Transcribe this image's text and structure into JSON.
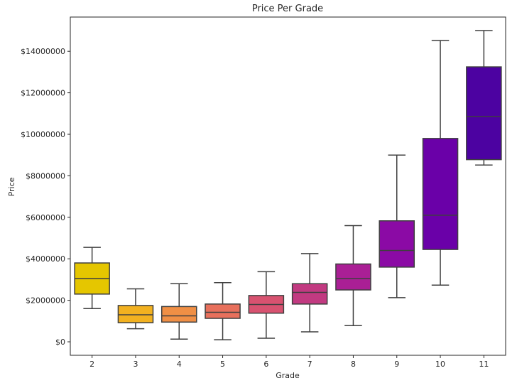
{
  "chart_data": {
    "type": "box",
    "title": "Price Per Grade",
    "xlabel": "Grade",
    "ylabel": "Price",
    "ylim": [
      -650000,
      15650000
    ],
    "yticks": [
      0,
      2000000,
      4000000,
      6000000,
      8000000,
      10000000,
      12000000,
      14000000
    ],
    "ytick_labels": [
      "$0",
      "$2000000",
      "$4000000",
      "$6000000",
      "$8000000",
      "$10000000",
      "$12000000",
      "$14000000"
    ],
    "grid": false,
    "categories": [
      "2",
      "3",
      "4",
      "5",
      "6",
      "7",
      "8",
      "9",
      "10",
      "11"
    ],
    "boxes": [
      {
        "grade": "2",
        "whisker_low": 1600000,
        "q1": 2300000,
        "median": 3050000,
        "q3": 3800000,
        "whisker_high": 4550000,
        "color": "#e5c600"
      },
      {
        "grade": "3",
        "whisker_low": 630000,
        "q1": 920000,
        "median": 1300000,
        "q3": 1750000,
        "whisker_high": 2550000,
        "color": "#f2b120"
      },
      {
        "grade": "4",
        "whisker_low": 130000,
        "q1": 950000,
        "median": 1250000,
        "q3": 1700000,
        "whisker_high": 2800000,
        "color": "#f08f45"
      },
      {
        "grade": "5",
        "whisker_low": 100000,
        "q1": 1130000,
        "median": 1420000,
        "q3": 1820000,
        "whisker_high": 2850000,
        "color": "#e8705c"
      },
      {
        "grade": "6",
        "whisker_low": 170000,
        "q1": 1380000,
        "median": 1800000,
        "q3": 2230000,
        "whisker_high": 3380000,
        "color": "#d85270"
      },
      {
        "grade": "7",
        "whisker_low": 480000,
        "q1": 1820000,
        "median": 2380000,
        "q3": 2800000,
        "whisker_high": 4250000,
        "color": "#c23a81"
      },
      {
        "grade": "8",
        "whisker_low": 780000,
        "q1": 2500000,
        "median": 3050000,
        "q3": 3750000,
        "whisker_high": 5600000,
        "color": "#aa1f95"
      },
      {
        "grade": "9",
        "whisker_low": 2130000,
        "q1": 3600000,
        "median": 4400000,
        "q3": 5830000,
        "whisker_high": 9000000,
        "color": "#8b0aa5"
      },
      {
        "grade": "10",
        "whisker_low": 2730000,
        "q1": 4450000,
        "median": 6100000,
        "q3": 9800000,
        "whisker_high": 14520000,
        "color": "#6a00a8"
      },
      {
        "grade": "11",
        "whisker_low": 8520000,
        "q1": 8780000,
        "median": 10850000,
        "q3": 13250000,
        "whisker_high": 15000000,
        "color": "#4c02a1"
      }
    ]
  }
}
